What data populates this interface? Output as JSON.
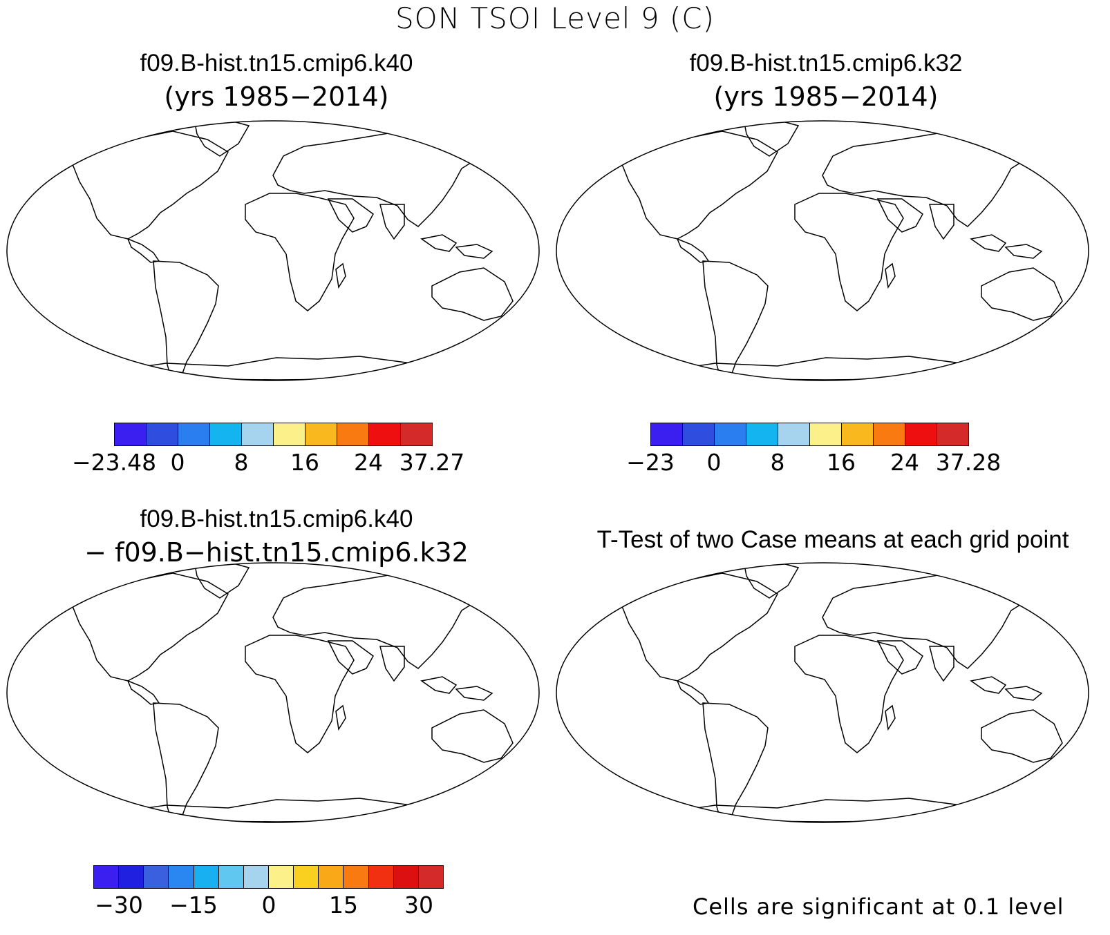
{
  "figure": {
    "title": "SON TSOI Level 9 (C)"
  },
  "panels": [
    {
      "id": "case1",
      "title": "f09.B-hist.tn15.cmip6.k40",
      "subtitle": "(yrs 1985−2014)",
      "colorbar": {
        "colors": [
          "#3a1ff0",
          "#2f4ee0",
          "#2a7ef0",
          "#14b4f0",
          "#a6d4ef",
          "#fbf08a",
          "#f9b81e",
          "#f97a10",
          "#ee1010",
          "#d42a2a"
        ],
        "tick_labels": [
          "−23.48",
          "0",
          "8",
          "16",
          "24",
          "37.27"
        ]
      }
    },
    {
      "id": "case2",
      "title": "f09.B-hist.tn15.cmip6.k32",
      "subtitle": "(yrs 1985−2014)",
      "colorbar": {
        "colors": [
          "#3a1ff0",
          "#2f4ee0",
          "#2a7ef0",
          "#14b4f0",
          "#a6d4ef",
          "#fbf08a",
          "#f9b81e",
          "#f97a10",
          "#ee1010",
          "#d42a2a"
        ],
        "tick_labels": [
          "−23",
          "0",
          "8",
          "16",
          "24",
          "37.28"
        ]
      }
    },
    {
      "id": "difference",
      "title": "f09.B-hist.tn15.cmip6.k40",
      "subtitle": "− f09.B−hist.tn15.cmip6.k32",
      "colorbar": {
        "colors": [
          "#3a1ff0",
          "#2020e0",
          "#3a60e0",
          "#2a86f0",
          "#18b0f0",
          "#60c8f0",
          "#a6d4ef",
          "#fbf08a",
          "#f9d020",
          "#f9a818",
          "#f97a10",
          "#f03010",
          "#dc1010",
          "#d42a2a"
        ],
        "tick_labels": [
          "−30",
          "−15",
          "0",
          "15",
          "30"
        ]
      }
    },
    {
      "id": "ttest",
      "title": "T-Test of two Case means at each grid point",
      "note": "Cells are significant at 0.1 level",
      "significant_color": "#ee1010"
    }
  ]
}
